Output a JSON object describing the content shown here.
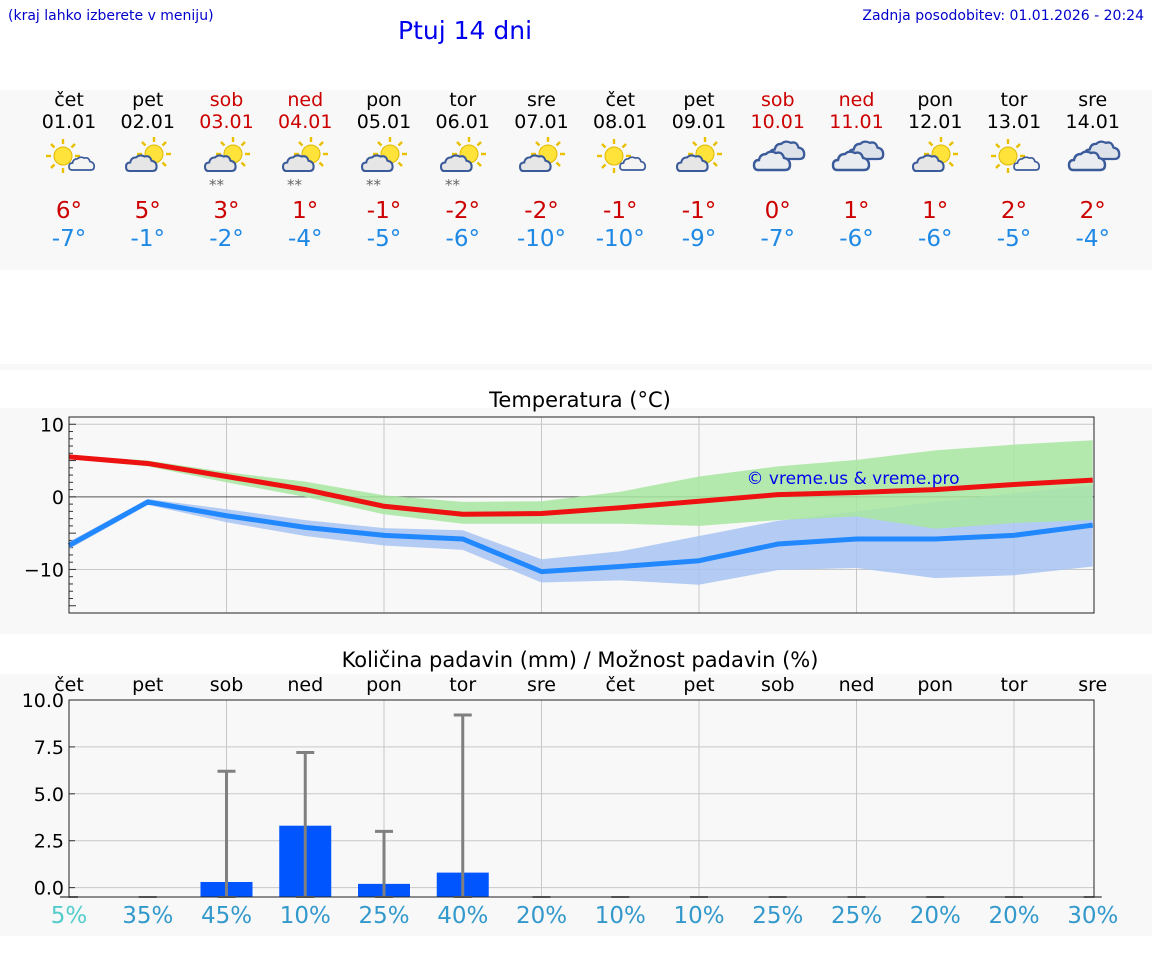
{
  "header": {
    "region_link": "(kraj lahko izberete v meniju)",
    "title": "Ptuj 14 dni",
    "updated": "Zadnja posodobitev: 01.01.2026 - 20:24"
  },
  "days": [
    {
      "name": "čet",
      "date": "01.01",
      "icon": "sun-cloud-icon",
      "snow": false,
      "max": "6°",
      "min": "-7°",
      "weekend": false
    },
    {
      "name": "pet",
      "date": "02.01",
      "icon": "cloud-sun-icon",
      "snow": false,
      "max": "5°",
      "min": "-1°",
      "weekend": false
    },
    {
      "name": "sob",
      "date": "03.01",
      "icon": "cloud-sun-snow-icon",
      "snow": true,
      "max": "3°",
      "min": "-2°",
      "weekend": true
    },
    {
      "name": "ned",
      "date": "04.01",
      "icon": "cloud-sun-snow-icon",
      "snow": true,
      "max": "1°",
      "min": "-4°",
      "weekend": true
    },
    {
      "name": "pon",
      "date": "05.01",
      "icon": "cloud-sun-snow-icon",
      "snow": true,
      "max": "-1°",
      "min": "-5°",
      "weekend": false
    },
    {
      "name": "tor",
      "date": "06.01",
      "icon": "cloud-sun-snow-icon",
      "snow": true,
      "max": "-2°",
      "min": "-6°",
      "weekend": false
    },
    {
      "name": "sre",
      "date": "07.01",
      "icon": "cloud-sun-icon",
      "snow": false,
      "max": "-2°",
      "min": "-10°",
      "weekend": false
    },
    {
      "name": "čet",
      "date": "08.01",
      "icon": "sun-cloud-icon",
      "snow": false,
      "max": "-1°",
      "min": "-10°",
      "weekend": false
    },
    {
      "name": "pet",
      "date": "09.01",
      "icon": "cloud-sun-icon",
      "snow": false,
      "max": "-1°",
      "min": "-9°",
      "weekend": false
    },
    {
      "name": "sob",
      "date": "10.01",
      "icon": "overcast-icon",
      "snow": false,
      "max": "0°",
      "min": "-7°",
      "weekend": true
    },
    {
      "name": "ned",
      "date": "11.01",
      "icon": "overcast-icon",
      "snow": false,
      "max": "1°",
      "min": "-6°",
      "weekend": true
    },
    {
      "name": "pon",
      "date": "12.01",
      "icon": "cloud-sun-icon",
      "snow": false,
      "max": "1°",
      "min": "-6°",
      "weekend": false
    },
    {
      "name": "tor",
      "date": "13.01",
      "icon": "sun-cloud-icon",
      "snow": false,
      "max": "2°",
      "min": "-5°",
      "weekend": false
    },
    {
      "name": "sre",
      "date": "14.01",
      "icon": "overcast-icon",
      "snow": false,
      "max": "2°",
      "min": "-4°",
      "weekend": false
    }
  ],
  "colors": {
    "max_line": "#ee1111",
    "min_line": "#2288ff",
    "max_band": "#a8e6a0",
    "min_band": "#a8c4f2",
    "rain_bar": "#0055ff",
    "err_bar": "#808080",
    "weekend": "#cc0000",
    "prob_first": "#55cccc",
    "prob": "#3399cc"
  },
  "chart_data": [
    {
      "type": "line",
      "title": "Temperatura (°C)",
      "ylim": [
        -16,
        11
      ],
      "yticks": [
        10,
        0,
        -10
      ],
      "ytick_labels": [
        "10",
        "0",
        "−10"
      ],
      "x": [
        0,
        1,
        2,
        3,
        4,
        5,
        6,
        7,
        8,
        9,
        10,
        11,
        12,
        13
      ],
      "watermark": "© vreme.us & vreme.pro",
      "series": [
        {
          "name": "max",
          "values": [
            5.5,
            4.6,
            2.8,
            1.0,
            -1.3,
            -2.4,
            -2.3,
            -1.5,
            -0.6,
            0.3,
            0.6,
            1.0,
            1.7,
            2.3
          ]
        },
        {
          "name": "max_band_upper",
          "values": [
            5.8,
            5.0,
            3.4,
            2.1,
            0.2,
            -0.7,
            -0.6,
            0.7,
            2.8,
            4.2,
            5.1,
            6.4,
            7.2,
            7.8
          ]
        },
        {
          "name": "max_band_lower",
          "values": [
            5.2,
            4.2,
            2.0,
            0.0,
            -2.4,
            -3.7,
            -3.7,
            -3.7,
            -4.0,
            -3.2,
            -2.7,
            -4.4,
            -3.6,
            -3.2
          ]
        },
        {
          "name": "min",
          "values": [
            -6.7,
            -0.7,
            -2.6,
            -4.2,
            -5.3,
            -5.8,
            -10.3,
            -9.6,
            -8.8,
            -6.5,
            -5.8,
            -5.8,
            -5.3,
            -3.9
          ]
        },
        {
          "name": "min_band_upper",
          "values": [
            -6.2,
            -0.3,
            -1.7,
            -3.2,
            -4.3,
            -4.6,
            -8.6,
            -7.5,
            -5.4,
            -3.3,
            -2.0,
            -0.7,
            0.5,
            1.6
          ]
        },
        {
          "name": "min_band_lower",
          "values": [
            -7.2,
            -1.1,
            -3.5,
            -5.4,
            -6.7,
            -7.3,
            -11.8,
            -11.5,
            -12.1,
            -10.1,
            -9.8,
            -11.2,
            -10.8,
            -9.6
          ]
        }
      ]
    },
    {
      "type": "bar",
      "title": "Količina padavin (mm) / Možnost padavin (%)",
      "ylim": [
        -0.5,
        10
      ],
      "yticks": [
        0,
        2.5,
        5,
        7.5,
        10
      ],
      "ytick_labels": [
        "0.0",
        "2.5",
        "5.0",
        "7.5",
        "10.0"
      ],
      "categories": [
        "čet",
        "pet",
        "sob",
        "ned",
        "pon",
        "tor",
        "sre",
        "čet",
        "pet",
        "sob",
        "ned",
        "pon",
        "tor",
        "sre"
      ],
      "values": [
        0,
        0,
        0.3,
        3.3,
        0.2,
        0.8,
        0,
        0,
        0,
        0,
        0,
        0,
        0,
        0
      ],
      "max_values": [
        0,
        0,
        6.2,
        7.2,
        3.0,
        9.2,
        0,
        0,
        0,
        0,
        0,
        0,
        0,
        0
      ],
      "probabilities": [
        "5%",
        "35%",
        "45%",
        "10%",
        "25%",
        "40%",
        "20%",
        "10%",
        "10%",
        "25%",
        "25%",
        "20%",
        "20%",
        "30%"
      ]
    }
  ]
}
